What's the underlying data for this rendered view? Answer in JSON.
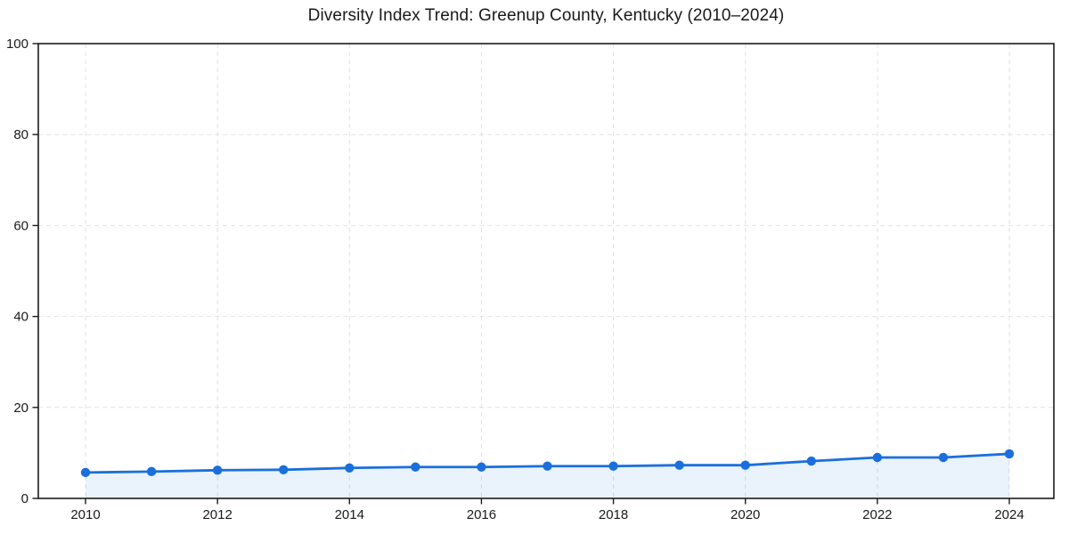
{
  "page": {
    "background_color": "#ffffff"
  },
  "chart_data": {
    "type": "line",
    "title": "Diversity Index Trend: Greenup County, Kentucky (2010–2024)",
    "x": [
      2010,
      2011,
      2012,
      2013,
      2014,
      2015,
      2016,
      2017,
      2018,
      2019,
      2020,
      2021,
      2022,
      2023,
      2024
    ],
    "series": [
      {
        "name": "Diversity Index",
        "values": [
          5.7,
          5.9,
          6.2,
          6.3,
          6.7,
          6.9,
          6.9,
          7.1,
          7.1,
          7.3,
          7.3,
          8.2,
          9.0,
          9.0,
          9.8
        ]
      }
    ],
    "xlabel": "",
    "ylabel": "",
    "ylim": [
      0,
      100
    ],
    "yticks": [
      0,
      20,
      40,
      60,
      80,
      100
    ],
    "xticks": [
      2010,
      2012,
      2014,
      2016,
      2018,
      2020,
      2022,
      2024
    ],
    "grid": true,
    "grid_style": "dashed",
    "legend_position": "none",
    "colors": {
      "line": "#1a6fdd",
      "marker": "#1a6fdd",
      "area_fill": "rgba(26,111,221,0.09)",
      "grid": "#e2e2e2",
      "axis": "#1a1a1a",
      "text": "#1a1a1a"
    }
  }
}
